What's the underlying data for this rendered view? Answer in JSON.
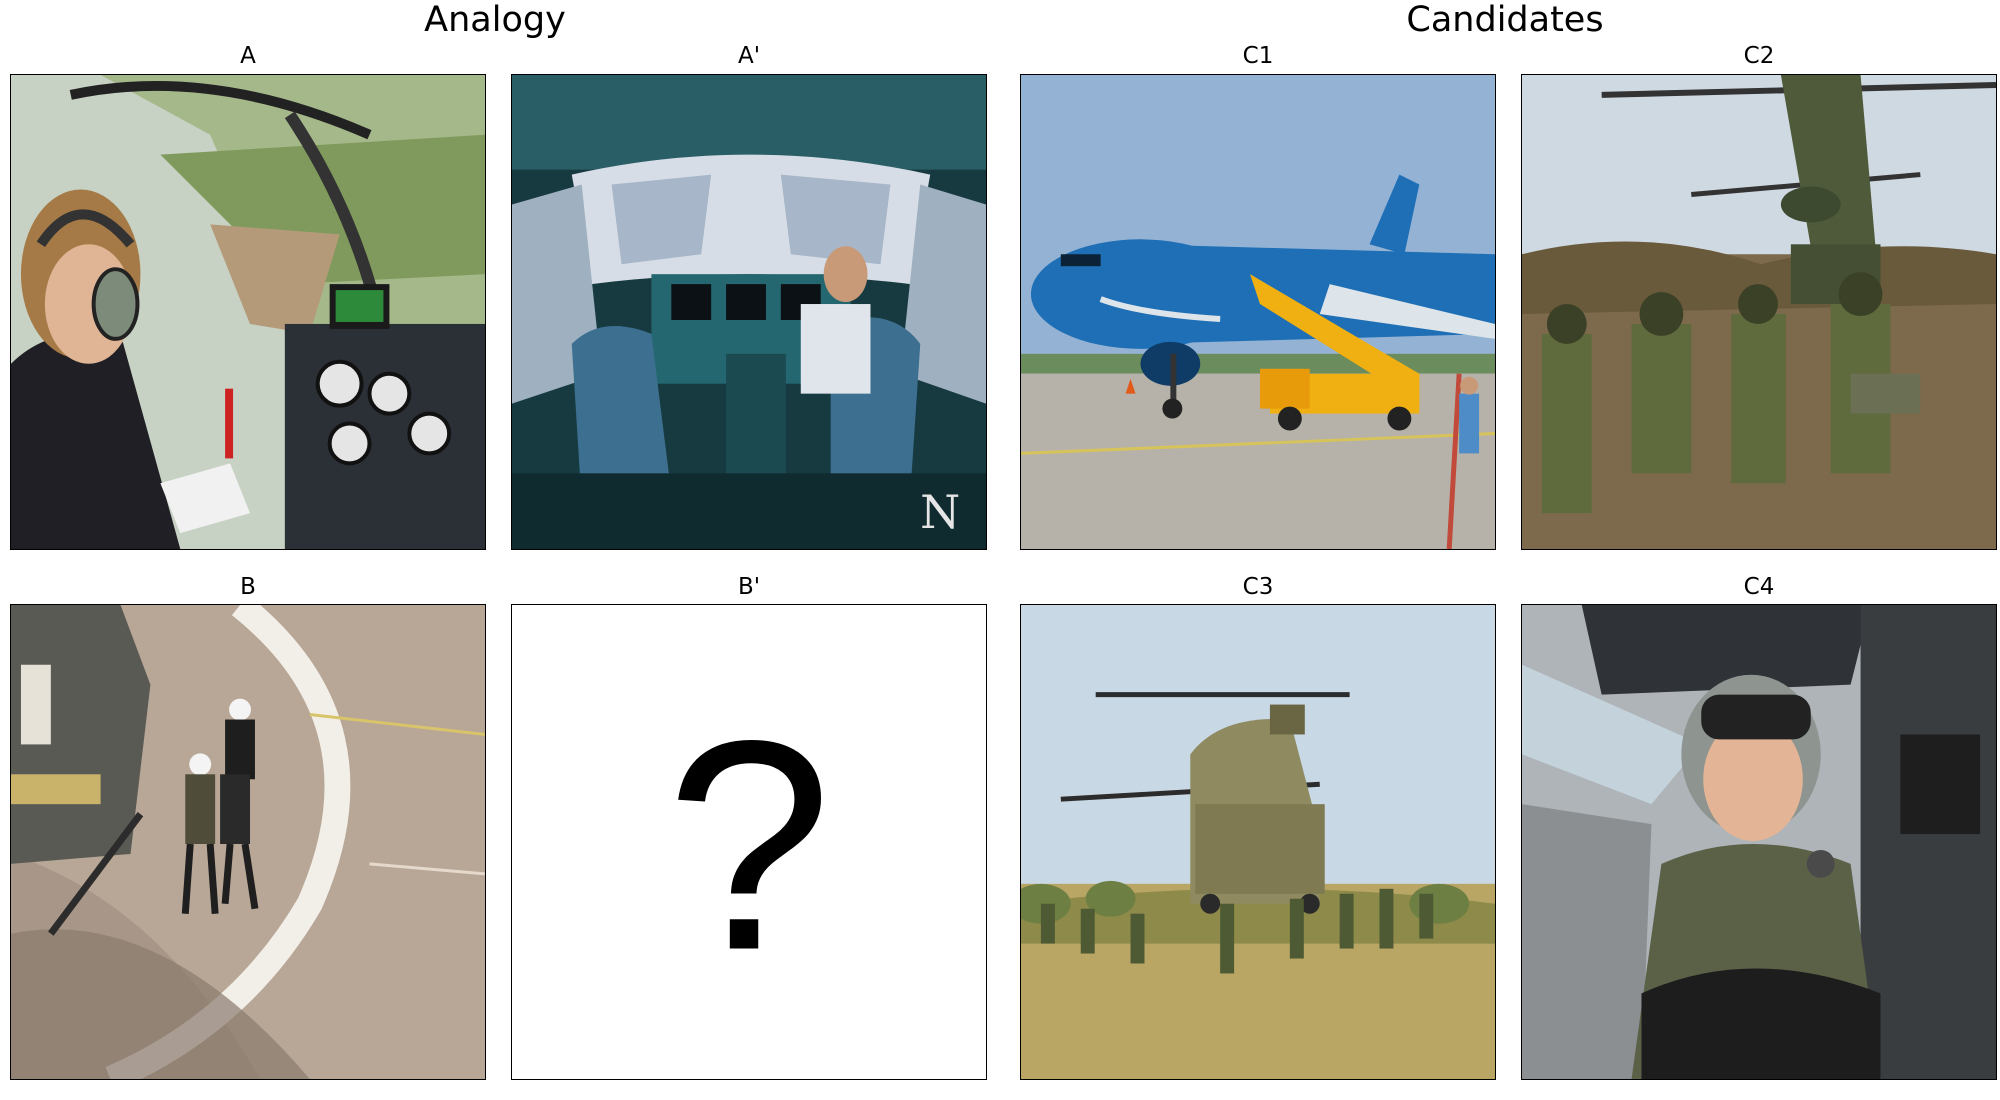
{
  "sections": {
    "analogy_title": "Analogy",
    "candidates_title": "Candidates"
  },
  "panels": {
    "A": {
      "label": "A",
      "scene": "helicopter cockpit with pilot holding map over green countryside"
    },
    "A_prime": {
      "label": "A'",
      "scene": "airliner cockpit with pilot at controls"
    },
    "B": {
      "label": "B",
      "scene": "people walking on helipad next to helicopter"
    },
    "B_prime": {
      "label": "B'",
      "glyph": "?"
    },
    "C1": {
      "label": "C1",
      "scene": "blue passenger jet with boarding stairs on tarmac"
    },
    "C2": {
      "label": "C2",
      "scene": "soldiers unloading from tandem rotor helicopter"
    },
    "C3": {
      "label": "C3",
      "scene": "tandem rotor helicopter landing in grass field with troops"
    },
    "C4": {
      "label": "C4",
      "scene": "smiling pilot in fighter jet cockpit"
    }
  },
  "colors": {
    "sky": "#9fb8d8",
    "grass": "#8a9a55",
    "teal_cockpit": "#1f5a63",
    "tarmac": "#a9a39a",
    "jet_blue": "#1e6fb5",
    "army_green": "#5f6a3d"
  }
}
